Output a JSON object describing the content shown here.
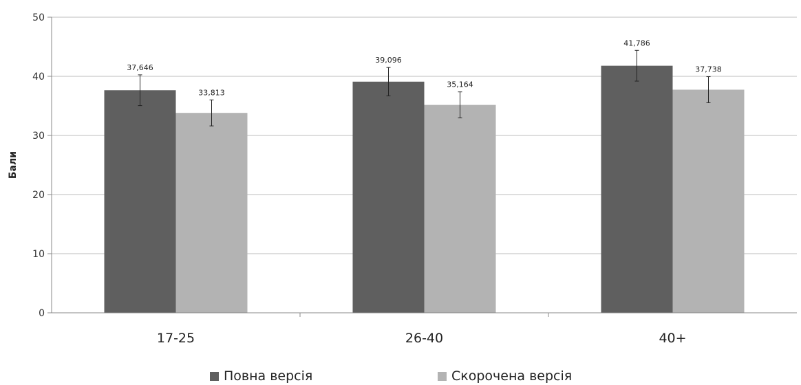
{
  "chart_data": {
    "type": "bar",
    "title": "",
    "xlabel": "",
    "ylabel": "Бали",
    "ylim": [
      0,
      50
    ],
    "yticks": [
      0,
      10,
      20,
      30,
      40,
      50
    ],
    "grid": true,
    "legend_position": "bottom",
    "categories": [
      "17-25",
      "26-40",
      "40+"
    ],
    "series": [
      {
        "name": "Повна версія",
        "color": "#5f5f5f",
        "values": [
          37.646,
          39.096,
          41.786
        ],
        "value_labels": [
          "37,646",
          "39,096",
          "41,786"
        ],
        "error": [
          2.6,
          2.4,
          2.6
        ]
      },
      {
        "name": "Скорочена версія",
        "color": "#b3b3b3",
        "values": [
          33.813,
          35.164,
          37.738
        ],
        "value_labels": [
          "33,813",
          "35,164",
          "37,738"
        ],
        "error": [
          2.2,
          2.2,
          2.2
        ]
      }
    ]
  }
}
